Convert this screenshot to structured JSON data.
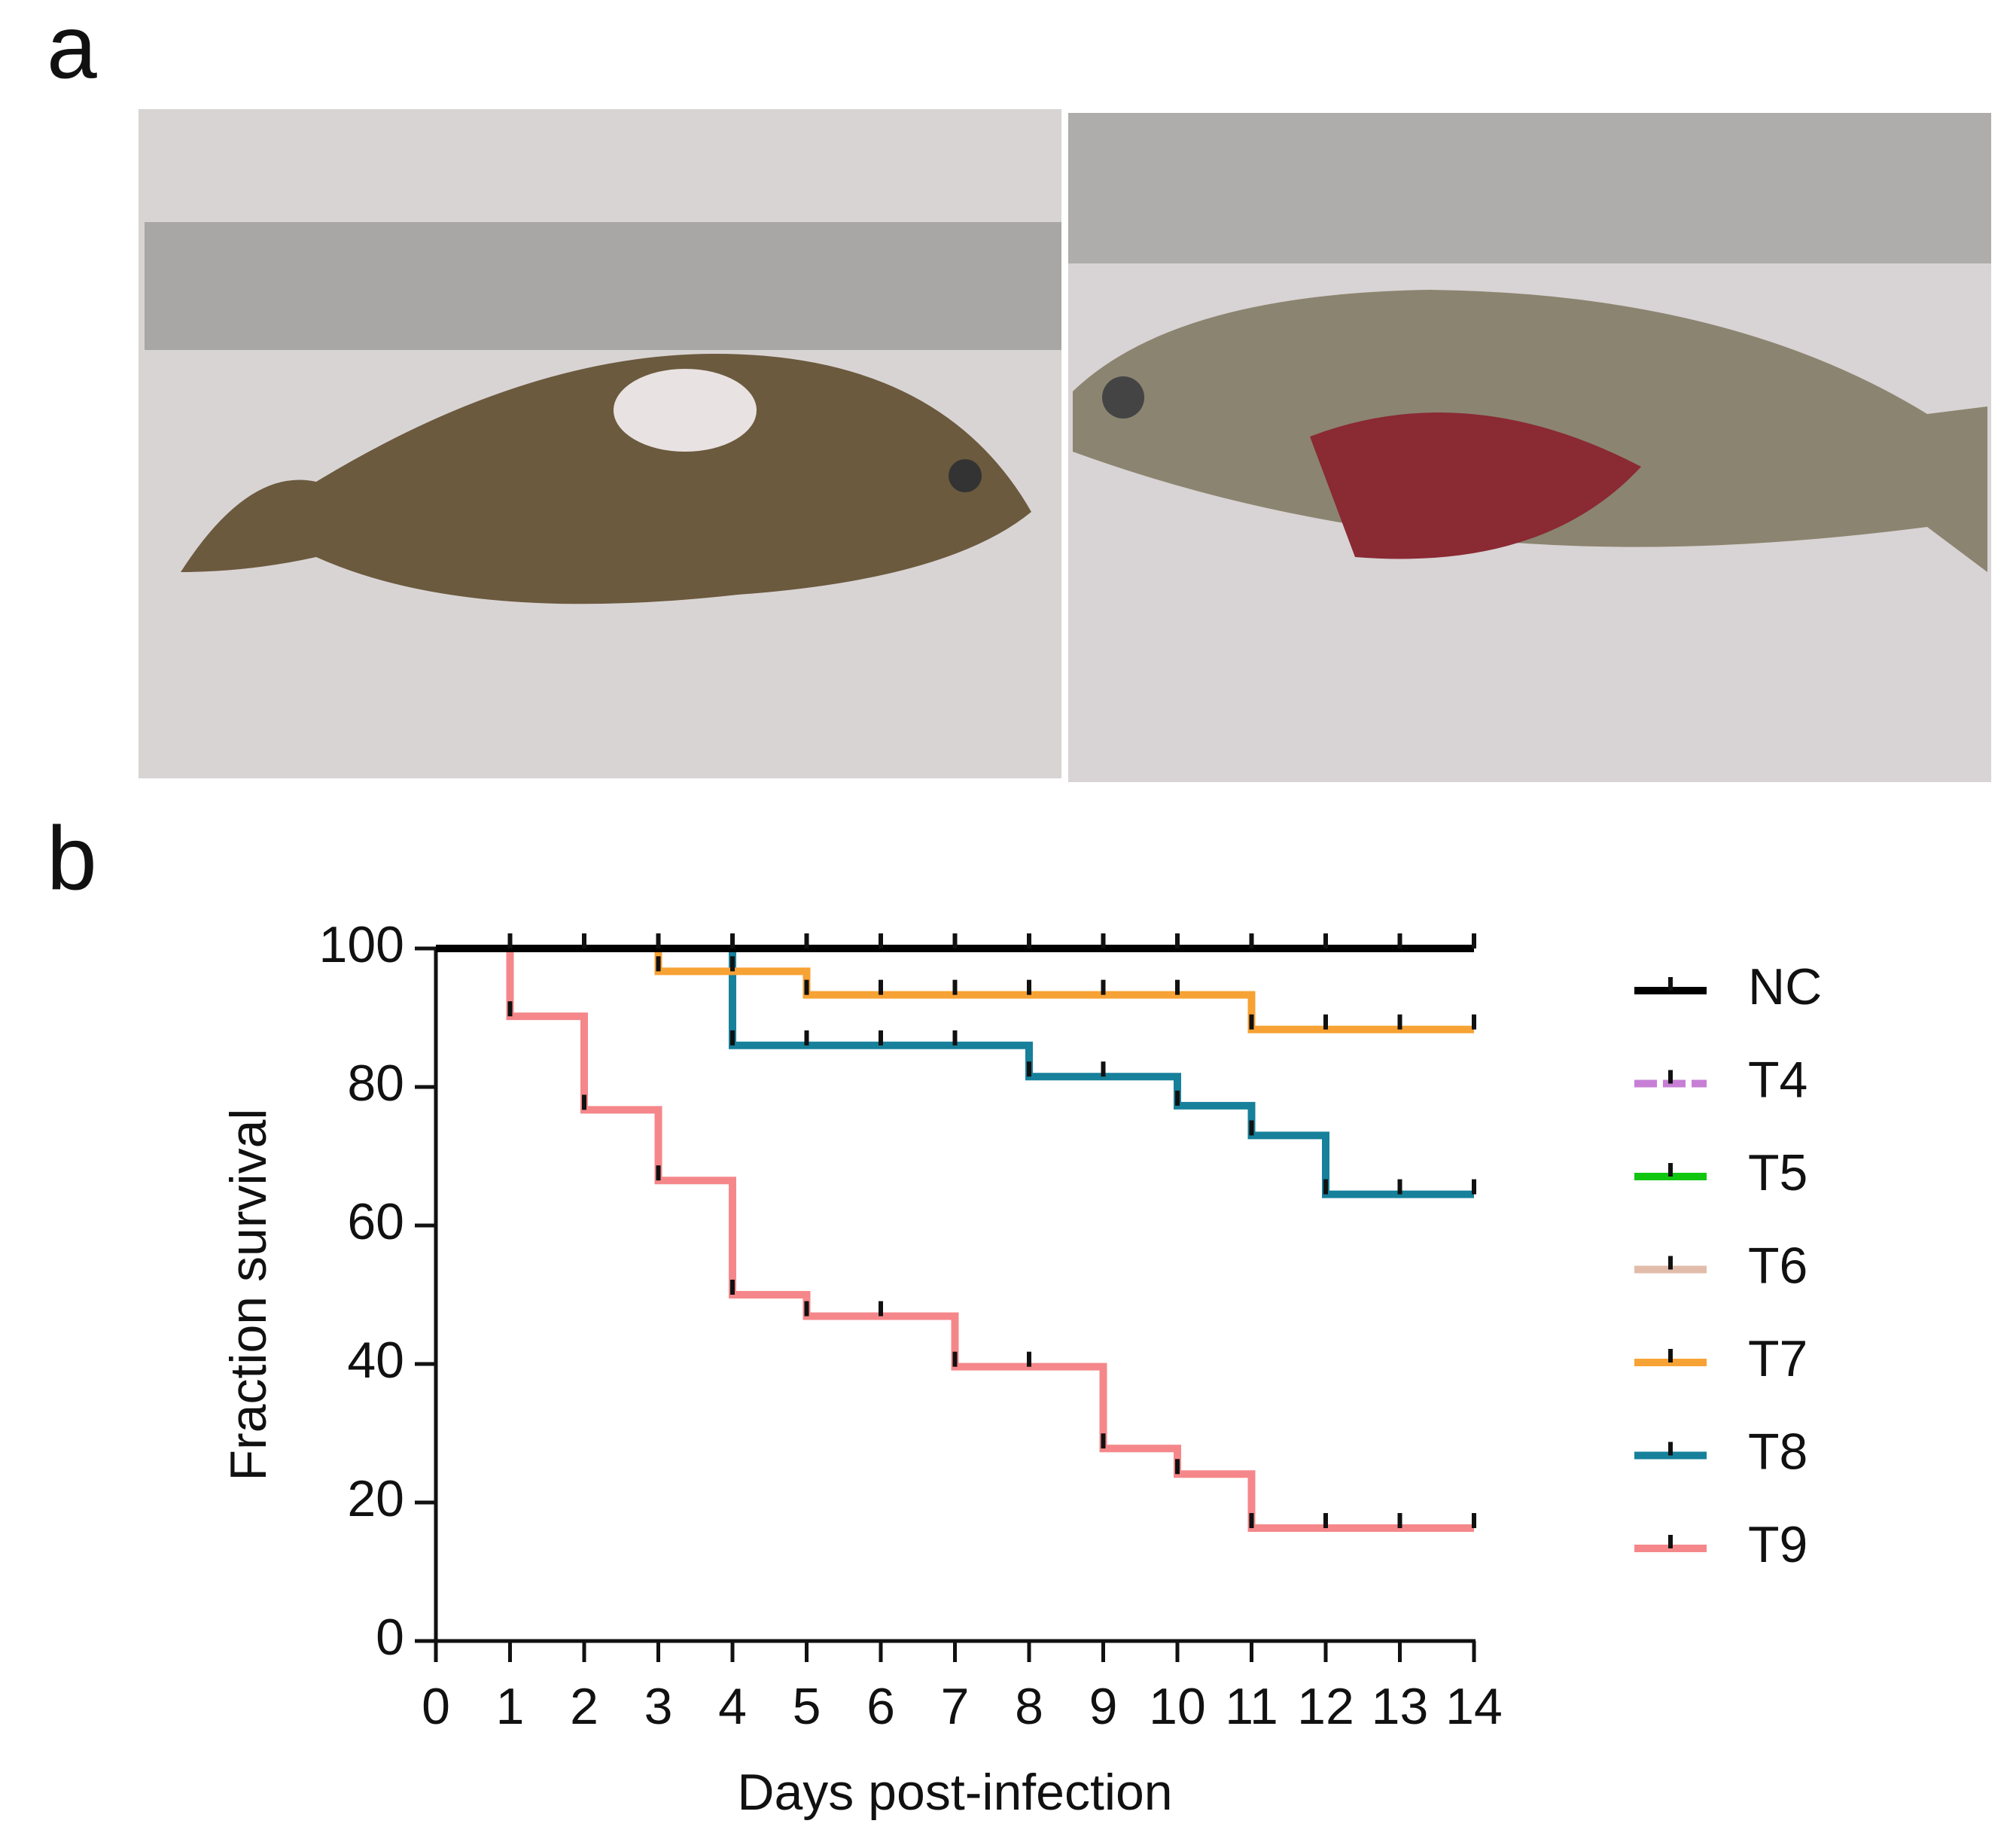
{
  "panel_labels": [
    "a",
    "b"
  ],
  "chart_data": {
    "type": "survival-step",
    "x_label": "Days post-infection",
    "y_label": "Fraction survival",
    "x": [
      0,
      1,
      2,
      3,
      4,
      5,
      6,
      7,
      8,
      9,
      10,
      11,
      12,
      13,
      14
    ],
    "xlim": [
      0,
      14
    ],
    "xticks": [
      0,
      1,
      2,
      3,
      4,
      5,
      6,
      7,
      8,
      9,
      10,
      11,
      12,
      13,
      14
    ],
    "ylim": [
      0,
      100
    ],
    "yticks": [
      0,
      20,
      40,
      60,
      80,
      100
    ],
    "series": [
      {
        "name": "NC",
        "color": "#000000",
        "values": [
          100,
          100,
          100,
          100,
          100,
          100,
          100,
          100,
          100,
          100,
          100,
          100,
          100,
          100,
          100
        ]
      },
      {
        "name": "T4",
        "color": "#c77fd6",
        "values": [
          100,
          100,
          100,
          100,
          100,
          100,
          100,
          100,
          100,
          100,
          100,
          100,
          100,
          100,
          100
        ]
      },
      {
        "name": "T5",
        "color": "#11c611",
        "values": [
          100,
          100,
          100,
          100,
          100,
          100,
          100,
          100,
          100,
          100,
          100,
          100,
          100,
          100,
          100
        ]
      },
      {
        "name": "T6",
        "color": "#e2bcaa",
        "values": [
          100,
          100,
          100,
          100,
          100,
          100,
          100,
          100,
          100,
          100,
          100,
          100,
          100,
          100,
          100
        ]
      },
      {
        "name": "T7",
        "color": "#f7a234",
        "values": [
          100,
          100,
          100,
          96.7,
          96.7,
          93.3,
          93.3,
          93.3,
          93.3,
          93.3,
          93.3,
          88.3,
          88.3,
          88.3,
          88.3
        ]
      },
      {
        "name": "T8",
        "color": "#17809b",
        "values": [
          100,
          100,
          100,
          100,
          86,
          86,
          86,
          86,
          81.5,
          81.5,
          77.3,
          73,
          64.5,
          64.5,
          64.5
        ]
      },
      {
        "name": "T9",
        "color": "#f5878a",
        "values": [
          100,
          90.2,
          76.7,
          66.5,
          50,
          46.9,
          46.9,
          39.6,
          39.6,
          27.8,
          24.1,
          16.3,
          16.3,
          16.3,
          16.3
        ]
      }
    ]
  }
}
